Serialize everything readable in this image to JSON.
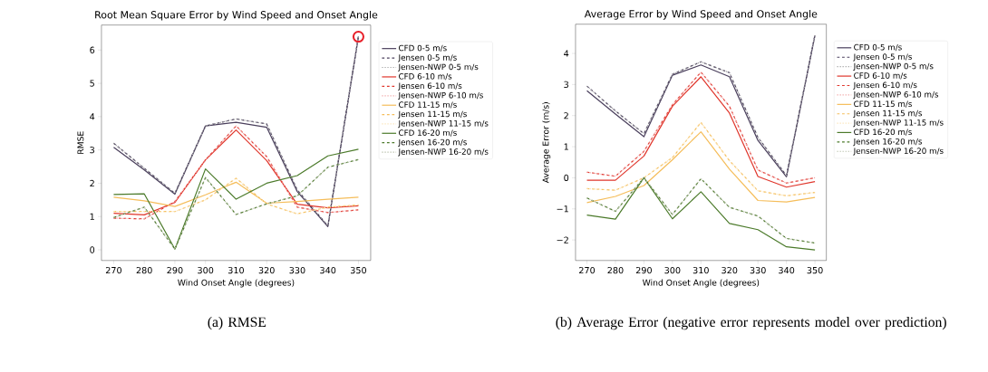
{
  "chart_data": [
    {
      "type": "line",
      "title": "Root Mean Square Error by Wind Speed and Onset Angle",
      "xlabel": "Wind Onset Angle (degrees)",
      "ylabel": "RMSE",
      "annotations": [
        "(a) RMSE"
      ],
      "x": [
        270,
        280,
        290,
        300,
        310,
        320,
        330,
        340,
        350
      ],
      "xlim": [
        266,
        354
      ],
      "xticks": [
        270,
        280,
        290,
        300,
        310,
        320,
        330,
        340,
        350
      ],
      "ylim": [
        -0.32,
        6.75
      ],
      "yticks": [
        0,
        1,
        2,
        3,
        4,
        5,
        6
      ],
      "grid": false,
      "legend": "right",
      "series": [
        {
          "name": "CFD 0-5 m/s",
          "color": "#4a3f5c",
          "line_style": "solid",
          "values": [
            3.08,
            2.4,
            1.67,
            3.72,
            3.83,
            3.68,
            1.75,
            0.7,
            6.4
          ]
        },
        {
          "name": "Jensen 0-5 m/s",
          "color": "#4a3f5c",
          "line_style": "dashed",
          "values": [
            3.2,
            2.45,
            1.7,
            3.72,
            3.93,
            3.78,
            1.8,
            0.72,
            6.42
          ]
        },
        {
          "name": "Jensen-NWP 0-5 m/s",
          "color": "#a0a0a0",
          "line_style": "dotted",
          "values": [
            3.2,
            2.45,
            1.7,
            3.72,
            3.93,
            3.78,
            1.8,
            0.72,
            6.42
          ]
        },
        {
          "name": "CFD 6-10 m/s",
          "color": "#e0362c",
          "line_style": "solid",
          "values": [
            1.1,
            1.05,
            1.42,
            2.7,
            3.6,
            2.68,
            1.37,
            1.26,
            1.32
          ]
        },
        {
          "name": "Jensen 6-10 m/s",
          "color": "#e0362c",
          "line_style": "dashed",
          "values": [
            0.95,
            0.93,
            1.45,
            2.7,
            3.72,
            2.8,
            1.28,
            1.12,
            1.2
          ]
        },
        {
          "name": "Jensen-NWP 6-10 m/s",
          "color": "#f0a0a0",
          "line_style": "dotted",
          "values": [
            0.95,
            0.93,
            1.45,
            2.7,
            3.72,
            2.8,
            1.28,
            1.12,
            1.2
          ]
        },
        {
          "name": "CFD 11-15 m/s",
          "color": "#f5bd5a",
          "line_style": "solid",
          "values": [
            1.58,
            1.47,
            1.3,
            1.65,
            2.03,
            1.4,
            1.45,
            1.52,
            1.58
          ]
        },
        {
          "name": "Jensen 11-15 m/s",
          "color": "#f5bd5a",
          "line_style": "dashed",
          "values": [
            1.15,
            1.15,
            1.15,
            1.5,
            2.15,
            1.38,
            1.08,
            1.28,
            1.35
          ]
        },
        {
          "name": "Jensen-NWP 11-15 m/s",
          "color": "#fbe2b0",
          "line_style": "dotted",
          "values": [
            1.15,
            1.15,
            1.15,
            1.5,
            2.15,
            1.38,
            1.08,
            1.28,
            1.35
          ]
        },
        {
          "name": "CFD 16-20 m/s",
          "color": "#4b7a2a",
          "line_style": "solid",
          "values": [
            1.66,
            1.68,
            0.02,
            2.43,
            1.52,
            2.0,
            2.23,
            2.82,
            3.02
          ]
        },
        {
          "name": "Jensen 16-20 m/s",
          "color": "#4b7a2a",
          "line_style": "dashed",
          "values": [
            0.97,
            1.28,
            0.02,
            2.17,
            1.06,
            1.38,
            1.62,
            2.48,
            2.71
          ]
        },
        {
          "name": "Jensen-NWP 16-20 m/s",
          "color": "#b0b8a0",
          "line_style": "dotted",
          "values": [
            0.97,
            1.28,
            0.02,
            2.17,
            1.06,
            1.38,
            1.62,
            2.48,
            2.71
          ]
        },
        {
          "type": "scatter",
          "color": "#e8202a",
          "marker": "circle",
          "values": [
            null,
            null,
            null,
            null,
            null,
            null,
            null,
            null,
            6.4
          ]
        }
      ]
    },
    {
      "type": "line",
      "title": "Average Error by Wind Speed and Onset Angle",
      "xlabel": "Wind Onset Angle (degrees)",
      "ylabel": "Average Error (m/s)",
      "annotations": [
        "(b) Average Error (negative error represents model over prediction)"
      ],
      "x": [
        270,
        280,
        290,
        300,
        310,
        320,
        330,
        340,
        350
      ],
      "xlim": [
        266,
        354
      ],
      "xticks": [
        270,
        280,
        290,
        300,
        310,
        320,
        330,
        340,
        350
      ],
      "ylim": [
        -2.66,
        4.94
      ],
      "yticks": [
        {
          "value": -2,
          "label": "−2"
        },
        {
          "value": -1,
          "label": "−1"
        },
        0,
        1,
        2,
        3,
        4
      ],
      "grid": false,
      "legend": "right",
      "series": [
        {
          "name": "CFD 0-5 m/s",
          "color": "#4a3f5c",
          "line_style": "solid",
          "values": [
            2.8,
            2.05,
            1.32,
            3.3,
            3.63,
            3.25,
            1.2,
            0.03,
            4.58
          ]
        },
        {
          "name": "Jensen 0-5 m/s",
          "color": "#4a3f5c",
          "line_style": "dashed",
          "values": [
            2.95,
            2.15,
            1.42,
            3.33,
            3.73,
            3.38,
            1.3,
            0.07,
            4.6
          ]
        },
        {
          "name": "Jensen-NWP 0-5 m/s",
          "color": "#a0a0a0",
          "line_style": "dotted",
          "values": [
            2.95,
            2.15,
            1.42,
            3.33,
            3.73,
            3.38,
            1.3,
            0.07,
            4.6
          ]
        },
        {
          "name": "CFD 6-10 m/s",
          "color": "#e0362c",
          "line_style": "solid",
          "values": [
            -0.08,
            -0.08,
            0.7,
            2.3,
            3.25,
            2.08,
            0.04,
            -0.3,
            -0.12
          ]
        },
        {
          "name": "Jensen 6-10 m/s",
          "color": "#e0362c",
          "line_style": "dashed",
          "values": [
            0.18,
            0.05,
            0.85,
            2.35,
            3.4,
            2.3,
            0.25,
            -0.17,
            0.0
          ]
        },
        {
          "name": "Jensen-NWP 6-10 m/s",
          "color": "#f0a0a0",
          "line_style": "dotted",
          "values": [
            0.18,
            0.05,
            0.85,
            2.35,
            3.4,
            2.3,
            0.25,
            -0.17,
            0.0
          ]
        },
        {
          "name": "CFD 11-15 m/s",
          "color": "#f5bd5a",
          "line_style": "solid",
          "values": [
            -0.8,
            -0.6,
            -0.25,
            0.58,
            1.48,
            0.28,
            -0.73,
            -0.78,
            -0.63
          ]
        },
        {
          "name": "Jensen 11-15 m/s",
          "color": "#f5bd5a",
          "line_style": "dashed",
          "values": [
            -0.35,
            -0.4,
            0.0,
            0.65,
            1.78,
            0.55,
            -0.42,
            -0.58,
            -0.47
          ]
        },
        {
          "name": "Jensen-NWP 11-15 m/s",
          "color": "#fbe2b0",
          "line_style": "dotted",
          "values": [
            -0.35,
            -0.4,
            0.0,
            0.65,
            1.78,
            0.55,
            -0.42,
            -0.58,
            -0.47
          ]
        },
        {
          "name": "CFD 16-20 m/s",
          "color": "#4b7a2a",
          "line_style": "solid",
          "values": [
            -1.2,
            -1.33,
            0.0,
            -1.32,
            -0.45,
            -1.47,
            -1.67,
            -2.22,
            -2.32
          ]
        },
        {
          "name": "Jensen 16-20 m/s",
          "color": "#4b7a2a",
          "line_style": "dashed",
          "values": [
            -0.65,
            -1.08,
            0.0,
            -1.18,
            -0.03,
            -0.95,
            -1.23,
            -1.95,
            -2.1
          ]
        },
        {
          "name": "Jensen-NWP 16-20 m/s",
          "color": "#b0b8a0",
          "line_style": "dotted",
          "values": [
            -0.65,
            -1.08,
            0.0,
            -1.18,
            -0.03,
            -0.95,
            -1.23,
            -1.95,
            -2.1
          ]
        }
      ]
    }
  ]
}
